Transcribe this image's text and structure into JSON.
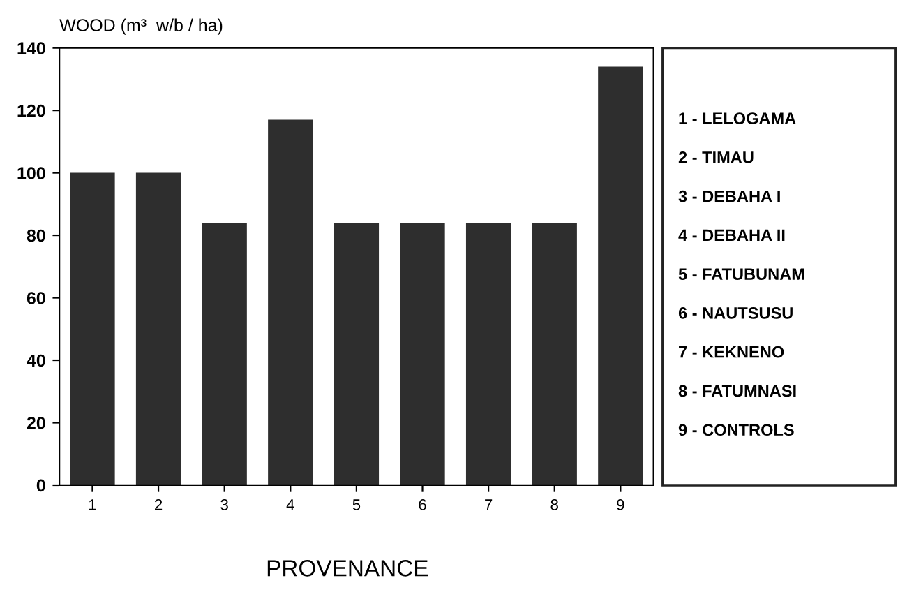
{
  "chart_data": {
    "type": "bar",
    "ylabel": "WOOD (m³  w/b / ha)",
    "xlabel": "PROVENANCE",
    "categories": [
      "1",
      "2",
      "3",
      "4",
      "5",
      "6",
      "7",
      "8",
      "9"
    ],
    "values": [
      100,
      100,
      84,
      117,
      84,
      84,
      84,
      84,
      134
    ],
    "color": "#2e2e2e",
    "ylim": [
      0,
      140
    ],
    "yticks": [
      0,
      20,
      40,
      60,
      80,
      100,
      120,
      140
    ],
    "grid": false,
    "annotations": [
      "1 - LELOGAMA",
      "2 - TIMAU",
      "3 - DEBAHA I",
      "4 - DEBAHA II",
      "5 - FATUBUNAM",
      "6 - NAUTSUSU",
      "7 - KEKNENO",
      "8 - FATUMNASI",
      "9 - CONTROLS"
    ]
  }
}
